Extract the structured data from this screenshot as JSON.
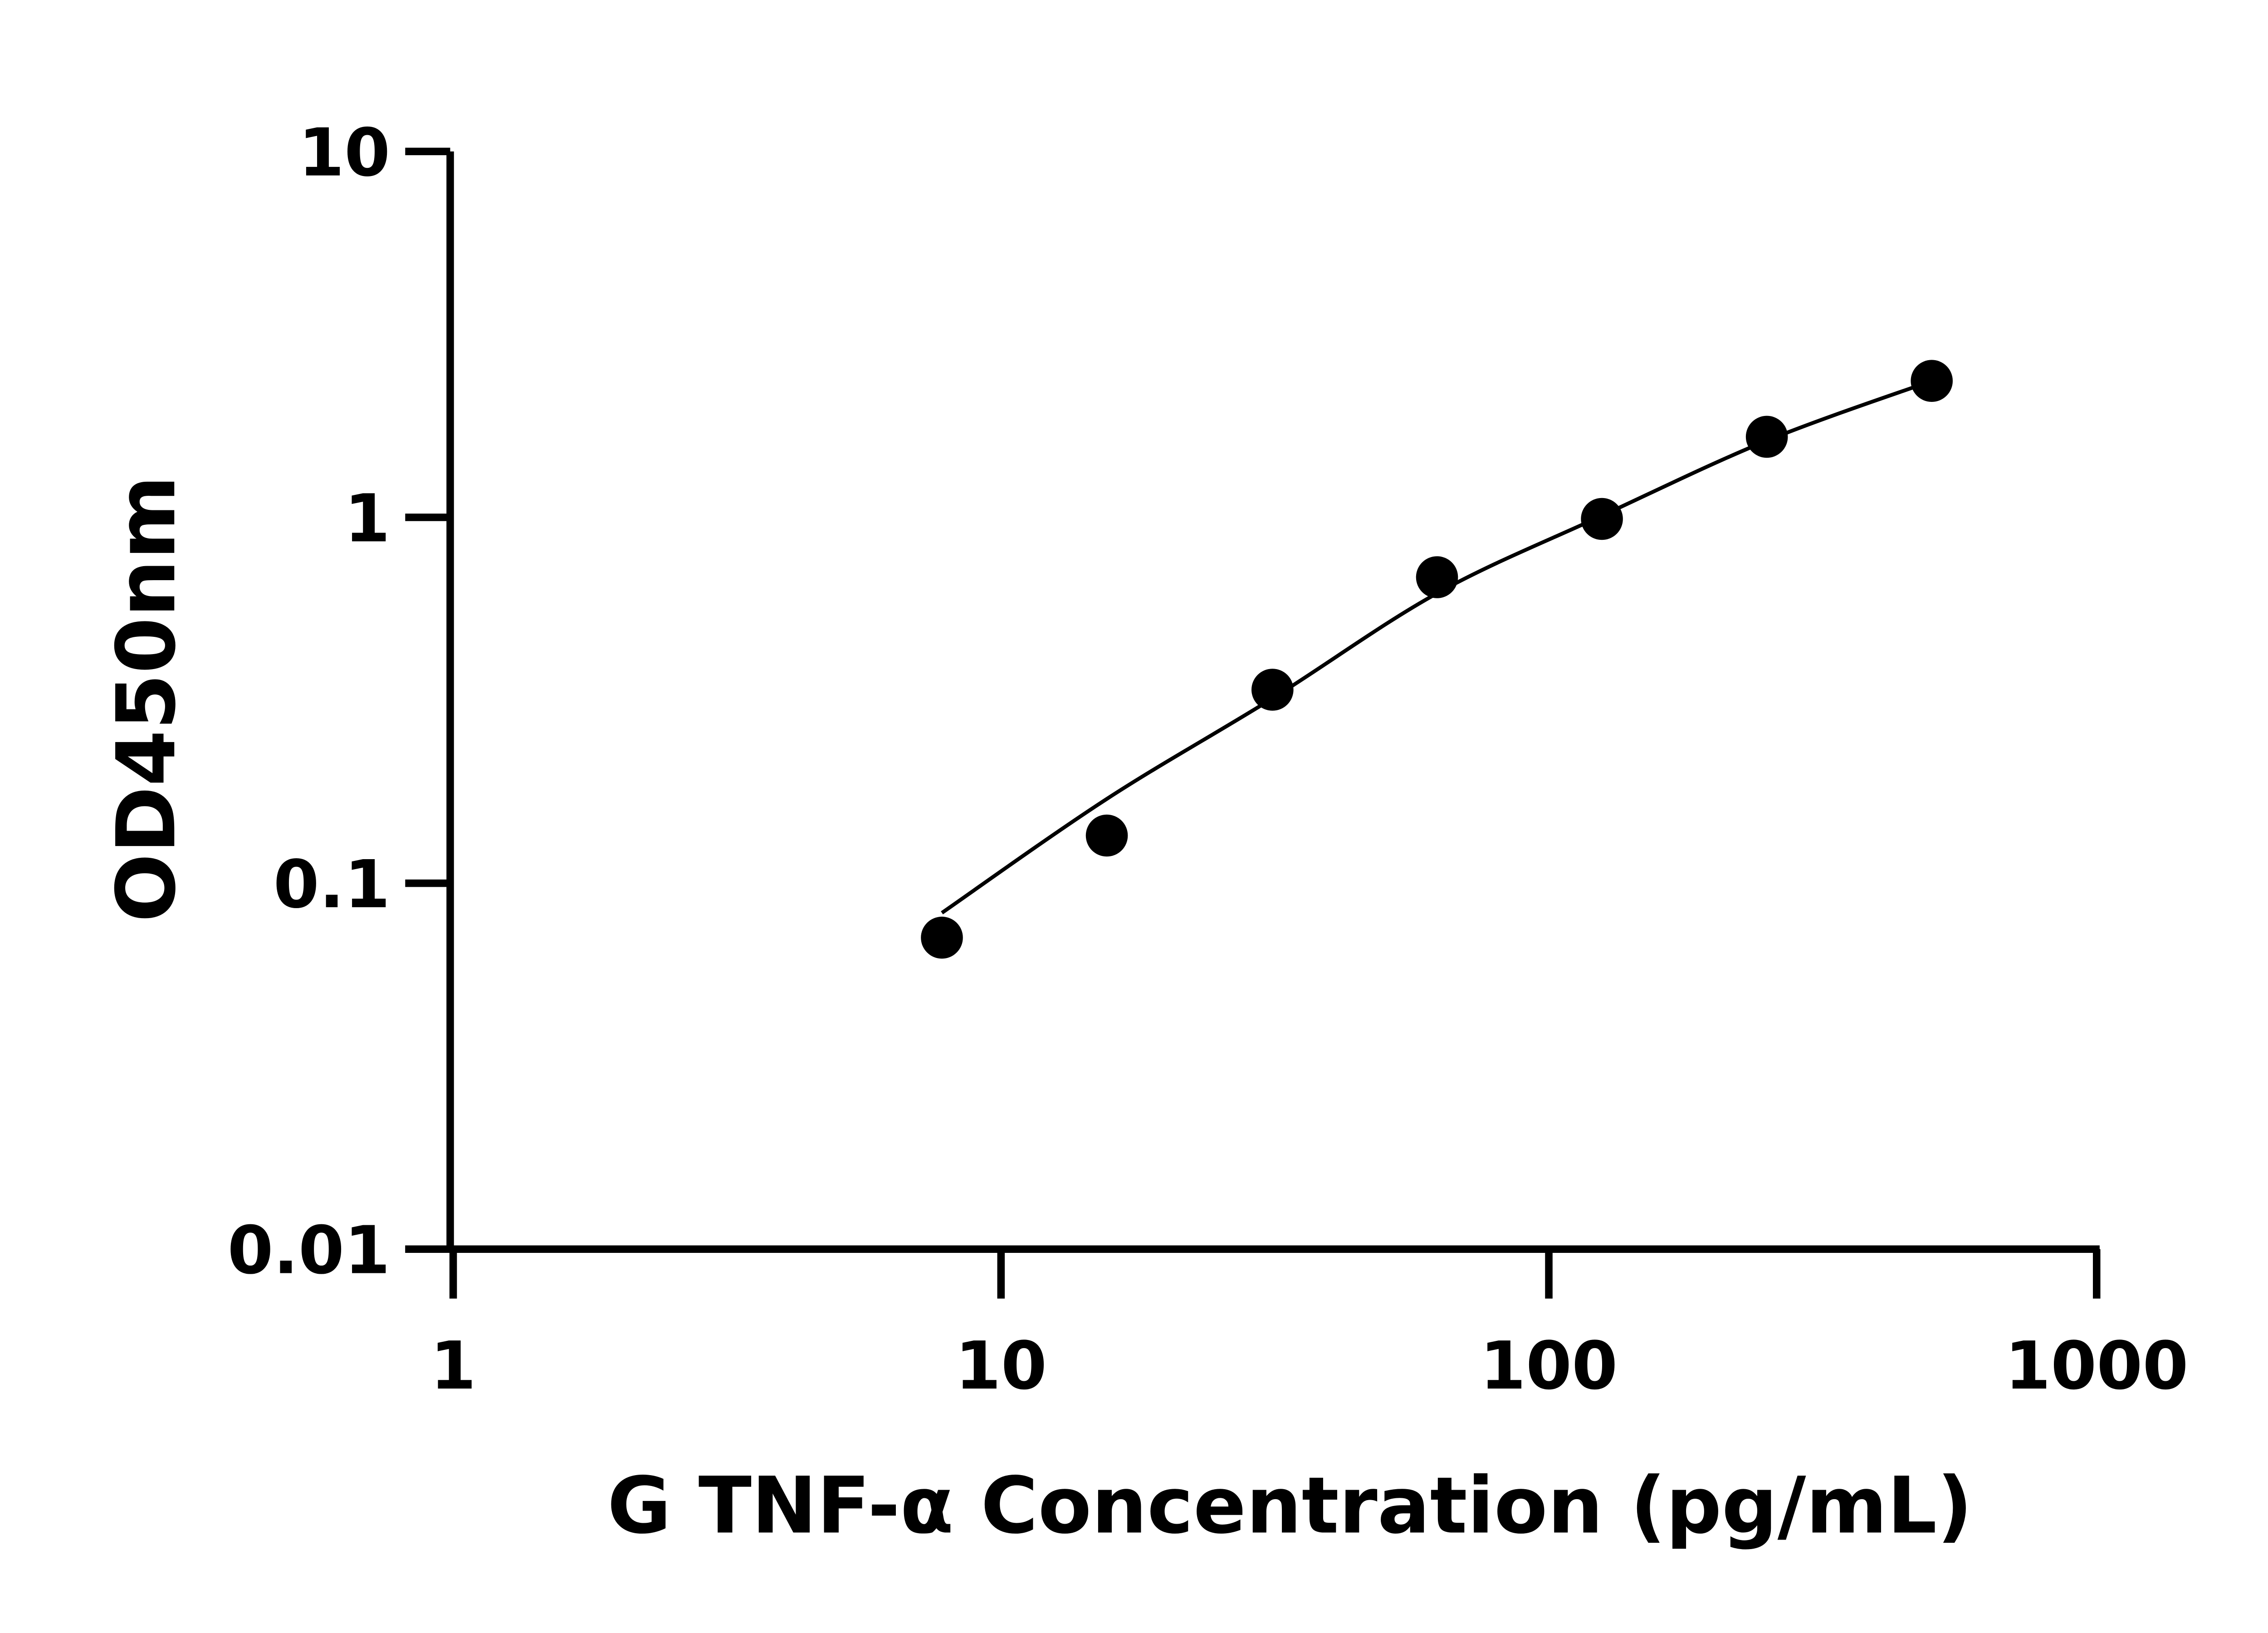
{
  "chart_data": {
    "type": "scatter",
    "title": "",
    "xlabel": "G TNF-α Concentration (pg/mL)",
    "ylabel": "OD450nm",
    "xscale": "log",
    "yscale": "log",
    "xlim": [
      1,
      1000
    ],
    "ylim": [
      0.01,
      10
    ],
    "xticks": [
      "1",
      "10",
      "100",
      "1000"
    ],
    "yticks": [
      "0.01",
      "0.1",
      "1",
      "10"
    ],
    "grid": false,
    "legend": "none",
    "marker_color": "#000000",
    "series": [
      {
        "x": [
          7.8,
          15.6,
          31.3,
          62.5,
          125,
          250,
          500
        ],
        "y": [
          0.071,
          0.135,
          0.338,
          0.686,
          0.99,
          1.66,
          2.36
        ]
      }
    ],
    "fit_curve": {
      "x": [
        7.8,
        15.6,
        31.3,
        62.5,
        125,
        250,
        500
      ],
      "y": [
        0.083,
        0.17,
        0.32,
        0.62,
        1.01,
        1.62,
        2.36
      ]
    }
  }
}
